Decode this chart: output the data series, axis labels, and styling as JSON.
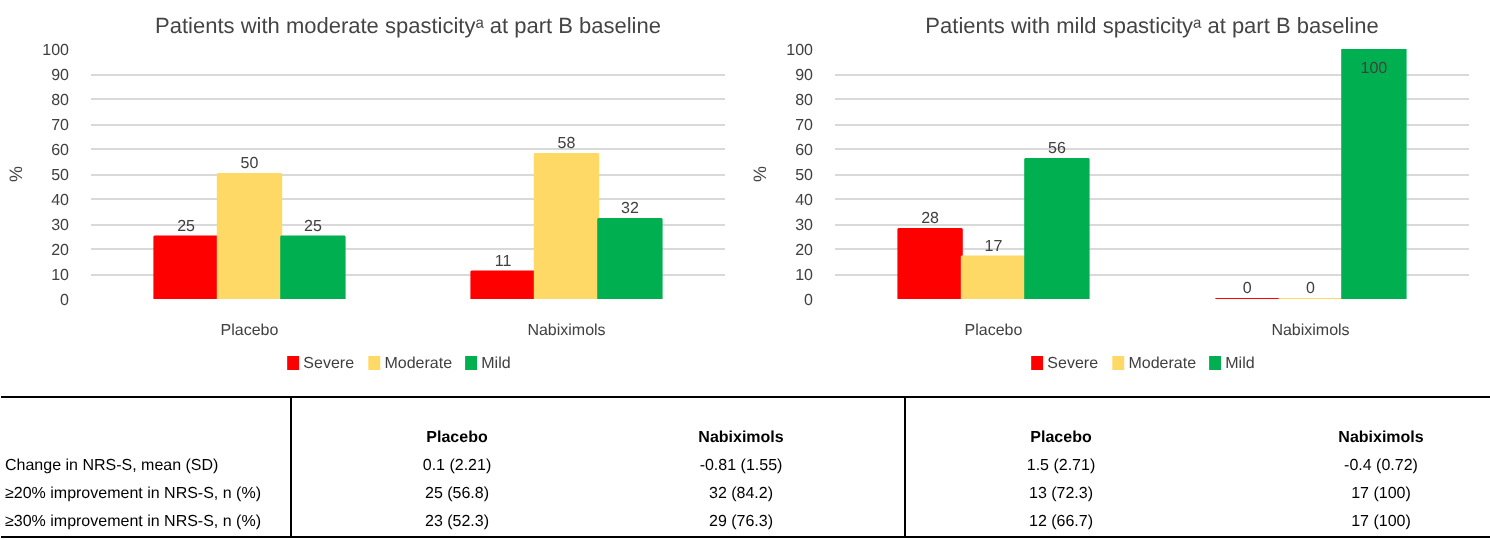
{
  "chart_data": [
    {
      "type": "bar",
      "title": "Patients with moderate spasticityᵃ at part B baseline",
      "ylabel": "%",
      "categories": [
        "Placebo",
        "Nabiximols"
      ],
      "series": [
        {
          "name": "Severe",
          "color": "#ff0000",
          "values": [
            25,
            11
          ]
        },
        {
          "name": "Moderate",
          "color": "#ffd966",
          "values": [
            50,
            58
          ]
        },
        {
          "name": "Mild",
          "color": "#00b050",
          "values": [
            25,
            32
          ]
        }
      ],
      "ylim": [
        0,
        100
      ],
      "yticks": [
        0,
        10,
        20,
        30,
        40,
        50,
        60,
        70,
        80,
        90,
        100
      ],
      "grid": "y",
      "legend": "bottom",
      "data_labels": true
    },
    {
      "type": "bar",
      "title": "Patients with mild spasticityᵃ at part B baseline",
      "ylabel": "%",
      "categories": [
        "Placebo",
        "Nabiximols"
      ],
      "series": [
        {
          "name": "Severe",
          "color": "#ff0000",
          "values": [
            28,
            0
          ]
        },
        {
          "name": "Moderate",
          "color": "#ffd966",
          "values": [
            17,
            0
          ]
        },
        {
          "name": "Mild",
          "color": "#00b050",
          "values": [
            56,
            100
          ]
        }
      ],
      "ylim": [
        0,
        100
      ],
      "yticks": [
        0,
        10,
        20,
        30,
        40,
        50,
        60,
        70,
        80,
        90,
        100
      ],
      "grid": "y",
      "legend": "bottom",
      "data_labels": true
    },
    {
      "type": "other",
      "annotations": [
        "Placebo",
        "Nabiximols",
        "Placebo",
        "Nabiximols",
        "Change in NRS-S, mean (SD)",
        "0.1 (2.21)",
        "-0.81 (1.55)",
        "1.5 (2.71)",
        "-0.4 (0.72)",
        "≥20% improvement in NRS-S, n (%)",
        "25 (56.8)",
        "32 (84.2)",
        "13 (72.3)",
        "17 (100)",
        "≥30% improvement in NRS-S, n (%)",
        "23 (52.3)",
        "29 (76.3)",
        "12 (66.7)",
        "17 (100)"
      ]
    }
  ]
}
